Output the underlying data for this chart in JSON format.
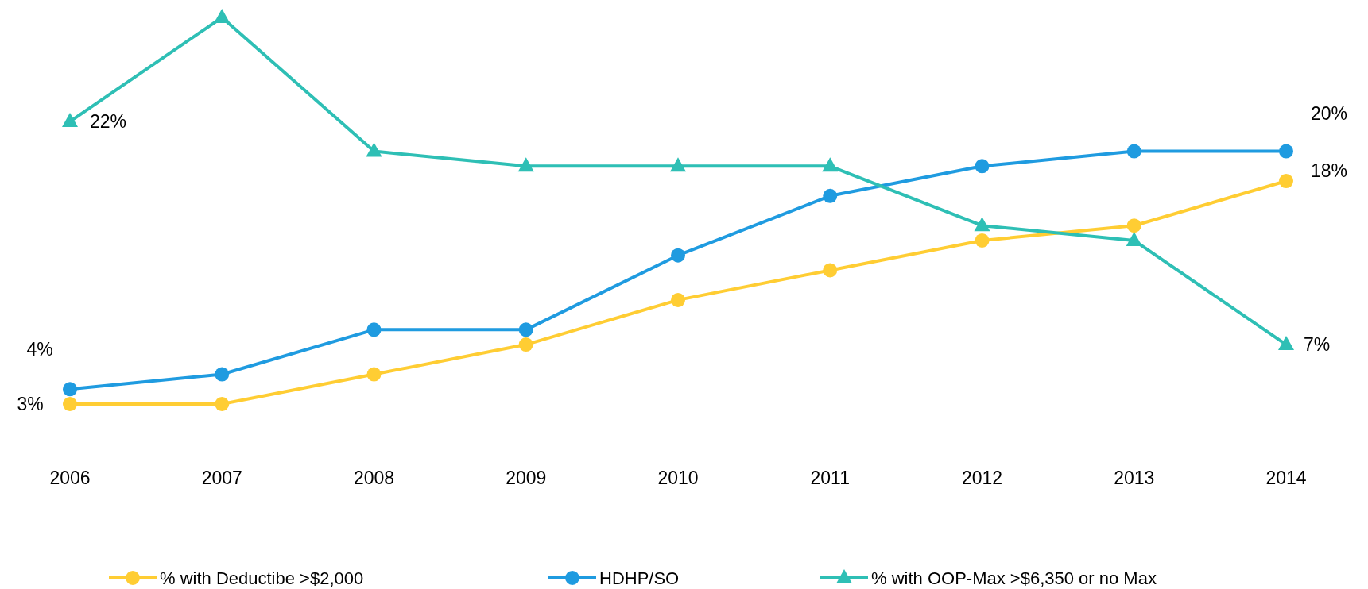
{
  "chart_data": {
    "type": "line",
    "categories": [
      "2006",
      "2007",
      "2008",
      "2009",
      "2010",
      "2011",
      "2012",
      "2013",
      "2014"
    ],
    "legend": "bottom",
    "series": [
      {
        "name": "% with Deductibe >$2,000",
        "color": "#ffcd33",
        "marker": "circle",
        "values": [
          3,
          3,
          5,
          7,
          10,
          12,
          14,
          15,
          18
        ],
        "value_labels": [
          "3%",
          null,
          null,
          null,
          null,
          null,
          null,
          null,
          "18%"
        ]
      },
      {
        "name": "HDHP/SO",
        "color": "#1f9be0",
        "marker": "circle",
        "values": [
          4,
          5,
          8,
          8,
          13,
          17,
          19,
          20,
          20
        ],
        "value_labels": [
          "4%",
          null,
          null,
          null,
          null,
          null,
          null,
          null,
          "20%"
        ]
      },
      {
        "name": "% with OOP-Max >$6,350 or no Max",
        "color": "#2ebfb5",
        "marker": "triangle",
        "values": [
          22,
          29,
          20,
          19,
          19,
          19,
          15,
          14,
          7
        ],
        "value_labels": [
          "22%",
          null,
          null,
          null,
          null,
          null,
          null,
          null,
          "7%"
        ]
      }
    ]
  }
}
